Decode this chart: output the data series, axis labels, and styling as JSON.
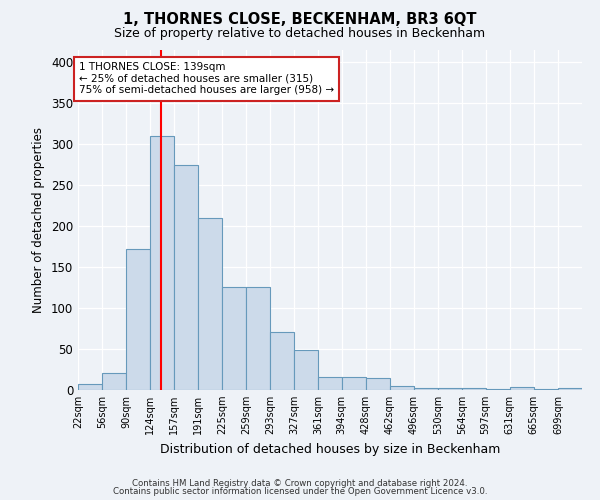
{
  "title": "1, THORNES CLOSE, BECKENHAM, BR3 6QT",
  "subtitle": "Size of property relative to detached houses in Beckenham",
  "xlabel": "Distribution of detached houses by size in Beckenham",
  "ylabel": "Number of detached properties",
  "bar_color": "#ccdaea",
  "bar_edge_color": "#6699bb",
  "background_color": "#eef2f7",
  "bin_edges": [
    22,
    56,
    90,
    124,
    157,
    191,
    225,
    259,
    293,
    327,
    361,
    394,
    428,
    462,
    496,
    530,
    564,
    597,
    631,
    665,
    699,
    733
  ],
  "counts": [
    7,
    21,
    172,
    310,
    275,
    210,
    126,
    126,
    71,
    49,
    16,
    16,
    15,
    5,
    3,
    3,
    3,
    1,
    4,
    1,
    3
  ],
  "tick_labels": [
    "22sqm",
    "56sqm",
    "90sqm",
    "124sqm",
    "157sqm",
    "191sqm",
    "225sqm",
    "259sqm",
    "293sqm",
    "327sqm",
    "361sqm",
    "394sqm",
    "428sqm",
    "462sqm",
    "496sqm",
    "530sqm",
    "564sqm",
    "597sqm",
    "631sqm",
    "665sqm",
    "699sqm"
  ],
  "red_line_x": 139,
  "ylim": [
    0,
    415
  ],
  "yticks": [
    0,
    50,
    100,
    150,
    200,
    250,
    300,
    350,
    400
  ],
  "annotation_title": "1 THORNES CLOSE: 139sqm",
  "annotation_line1": "← 25% of detached houses are smaller (315)",
  "annotation_line2": "75% of semi-detached houses are larger (958) →",
  "footnote1": "Contains HM Land Registry data © Crown copyright and database right 2024.",
  "footnote2": "Contains public sector information licensed under the Open Government Licence v3.0."
}
